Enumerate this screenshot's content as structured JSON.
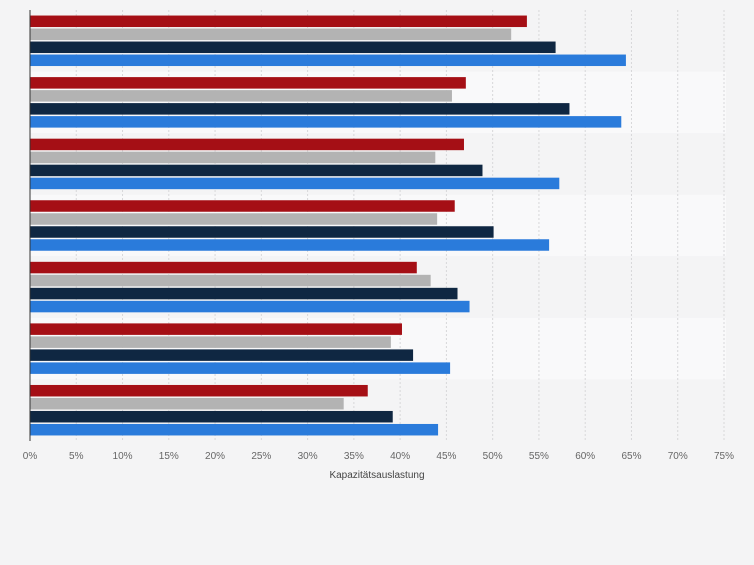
{
  "chart_data": {
    "type": "bar",
    "orientation": "horizontal",
    "categories": [
      "",
      "",
      "",
      "",
      "",
      "",
      ""
    ],
    "series": [
      {
        "color": "#a50f15",
        "values": [
          53.7,
          47.1,
          46.9,
          45.9,
          41.8,
          40.2,
          36.5
        ]
      },
      {
        "color": "#b3b3b3",
        "values": [
          52.0,
          45.6,
          43.8,
          44.0,
          43.3,
          39.0,
          33.9
        ]
      },
      {
        "color": "#0f2742",
        "values": [
          56.8,
          58.3,
          48.9,
          50.1,
          46.2,
          41.4,
          39.2
        ]
      },
      {
        "color": "#2a7bdb",
        "values": [
          64.4,
          63.9,
          57.2,
          56.1,
          47.5,
          45.4,
          44.1
        ]
      }
    ],
    "xlabel": "Kapazitätsauslastung",
    "xlim": [
      0,
      75
    ],
    "xticks": [
      0,
      5,
      10,
      15,
      20,
      25,
      30,
      35,
      40,
      45,
      50,
      55,
      60,
      65,
      70,
      75
    ],
    "tick_suffix": "%",
    "grid": true,
    "band_colors": [
      "#f4f4f5",
      "#f9f9fa"
    ],
    "axis_color": "#333333",
    "grid_color": "#d7d7d9",
    "tick_label_color": "#666666"
  }
}
